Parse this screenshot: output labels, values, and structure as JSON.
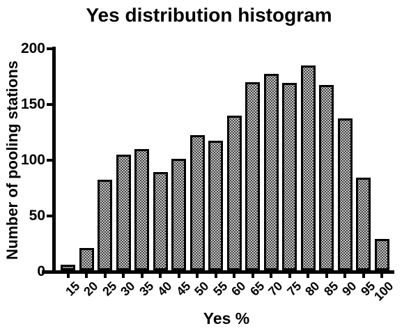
{
  "chart_data": {
    "type": "bar",
    "title": "Yes distribution histogram",
    "xlabel": "Yes %",
    "ylabel": "Number of pooling stations",
    "categories": [
      "15",
      "20",
      "25",
      "30",
      "35",
      "40",
      "45",
      "50",
      "55",
      "60",
      "65",
      "70",
      "75",
      "80",
      "85",
      "90",
      "95",
      "100"
    ],
    "values": [
      5,
      20,
      81,
      104,
      109,
      88,
      100,
      121,
      116,
      139,
      169,
      176,
      168,
      184,
      166,
      136,
      83,
      28
    ],
    "ylim": [
      0,
      200
    ],
    "yticks": [
      0,
      50,
      100,
      150,
      200
    ],
    "grid": false,
    "legend": "none",
    "x_tick_label_rotation_deg": -45,
    "colors": {
      "background": "#ffffff",
      "text": "#000000",
      "axis": "#000000",
      "bar_border": "#000000",
      "bar_fill_base": "#c9c9c9",
      "bar_pattern_dots": "#141414"
    }
  }
}
